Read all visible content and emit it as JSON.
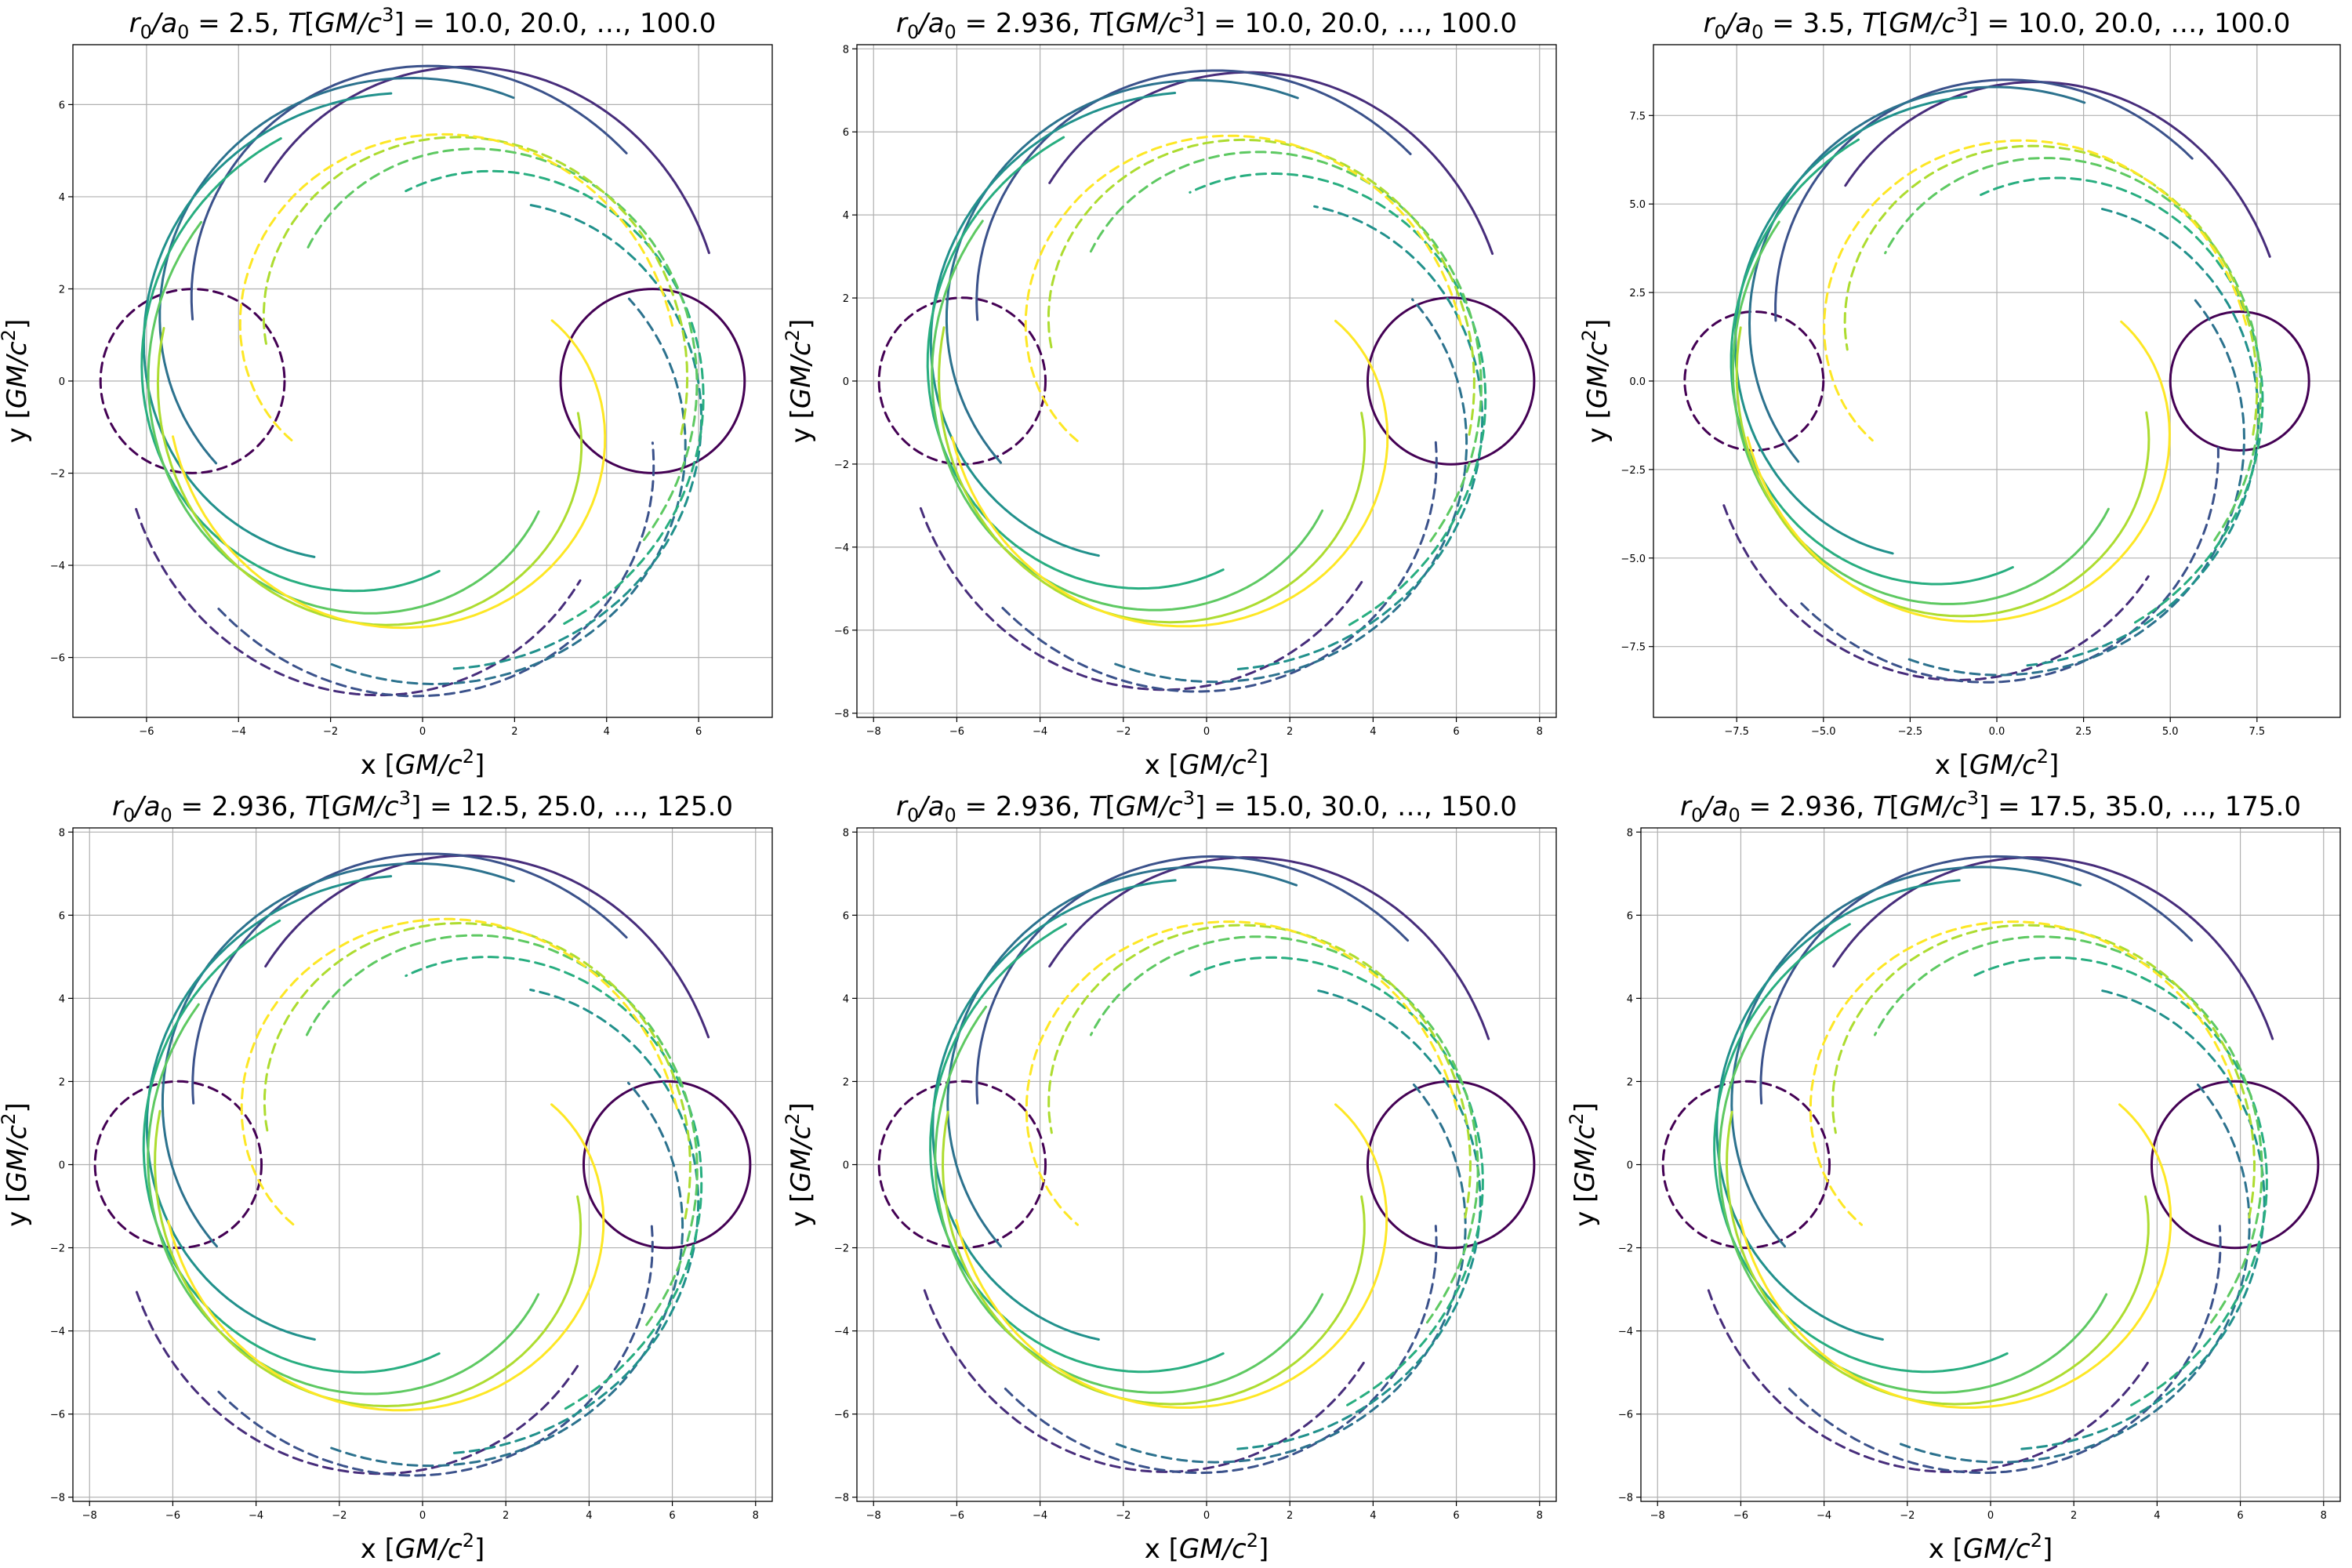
{
  "figure_title": "Six panels of trajectory curves",
  "chart_data": [
    {
      "type": "line",
      "title": "r_0/a_0 = 2.5,  T[GM/c^3] = 10.0, 20.0, …, 100.0",
      "title_parts": {
        "ratio": "2.5",
        "times": "10.0, 20.0,  …, 100.0"
      },
      "xlabel": "x [GM/c^2]",
      "ylabel": "y [GM/c^2]",
      "xlim": [
        -7.6,
        7.6
      ],
      "ylim": [
        -7.3,
        7.3
      ],
      "xticks": [
        -6,
        -4,
        -2,
        0,
        2,
        4,
        6
      ],
      "yticks": [
        -6,
        -4,
        -2,
        0,
        2,
        4,
        6
      ],
      "grid": true,
      "series_summary": {
        "circle_radius": 2.0,
        "circle_center_distance": 5.0,
        "spiral_max_radius": 6.9,
        "lobe_extent": 7.0
      }
    },
    {
      "type": "line",
      "title": "r_0/a_0 = 2.936,  T[GM/c^3] = 10.0, 20.0, …, 100.0",
      "title_parts": {
        "ratio": "2.936",
        "times": "10.0, 20.0,  …, 100.0"
      },
      "xlabel": "x [GM/c^2]",
      "ylabel": "y [GM/c^2]",
      "xlim": [
        -8.4,
        8.4
      ],
      "ylim": [
        -8.1,
        8.1
      ],
      "xticks": [
        -8,
        -6,
        -4,
        -2,
        0,
        2,
        4,
        6,
        8
      ],
      "yticks": [
        -8,
        -6,
        -4,
        -2,
        0,
        2,
        4,
        6,
        8
      ],
      "grid": true,
      "series_summary": {
        "circle_radius": 2.0,
        "circle_center_distance": 5.87,
        "spiral_max_radius": 7.6,
        "lobe_extent": 7.7
      }
    },
    {
      "type": "line",
      "title": "r_0/a_0 = 3.5,  T[GM/c^3] = 10.0, 20.0, …, 100.0",
      "title_parts": {
        "ratio": "3.5",
        "times": "10.0, 20.0,  …, 100.0"
      },
      "xlabel": "x [GM/c^2]",
      "ylabel": "y [GM/c^2]",
      "xlim": [
        -9.9,
        9.9
      ],
      "ylim": [
        -9.5,
        9.5
      ],
      "xticks": [
        -7.5,
        -5.0,
        -2.5,
        0.0,
        2.5,
        5.0,
        7.5
      ],
      "yticks": [
        -7.5,
        -5.0,
        -2.5,
        0.0,
        2.5,
        5.0,
        7.5
      ],
      "grid": true,
      "series_summary": {
        "circle_radius": 2.0,
        "circle_center_distance": 7.0,
        "spiral_max_radius": 8.8,
        "lobe_extent": 8.8
      }
    },
    {
      "type": "line",
      "title": "r_0/a_0 = 2.936,  T[GM/c^3] = 12.5, 25.0, …, 125.0",
      "title_parts": {
        "ratio": "2.936",
        "times": "12.5, 25.0,  …, 125.0"
      },
      "xlabel": "x [GM/c^2]",
      "ylabel": "y [GM/c^2]",
      "xlim": [
        -8.4,
        8.4
      ],
      "ylim": [
        -8.1,
        8.1
      ],
      "xticks": [
        -8,
        -6,
        -4,
        -2,
        0,
        2,
        4,
        6,
        8
      ],
      "yticks": [
        -8,
        -6,
        -4,
        -2,
        0,
        2,
        4,
        6,
        8
      ],
      "grid": true,
      "series_summary": {
        "circle_radius": 2.0,
        "circle_center_distance": 5.87,
        "spiral_max_radius": 7.6,
        "lobe_extent": 7.7
      }
    },
    {
      "type": "line",
      "title": "r_0/a_0 = 2.936,  T[GM/c^3] = 15.0, 30.0, …, 150.0",
      "title_parts": {
        "ratio": "2.936",
        "times": "15.0, 30.0,  …, 150.0"
      },
      "xlabel": "x [GM/c^2]",
      "ylabel": "y [GM/c^2]",
      "xlim": [
        -8.4,
        8.4
      ],
      "ylim": [
        -8.1,
        8.1
      ],
      "xticks": [
        -8,
        -6,
        -4,
        -2,
        0,
        2,
        4,
        6,
        8
      ],
      "yticks": [
        -8,
        -6,
        -4,
        -2,
        0,
        2,
        4,
        6,
        8
      ],
      "grid": true,
      "series_summary": {
        "circle_radius": 2.0,
        "circle_center_distance": 5.87,
        "spiral_max_radius": 7.6,
        "lobe_extent": 7.6
      }
    },
    {
      "type": "line",
      "title": "r_0/a_0 = 2.936,  T[GM/c^3] = 17.5, 35.0, …, 175.0",
      "title_parts": {
        "ratio": "2.936",
        "times": "17.5, 35.0,  …, 175.0"
      },
      "xlabel": "x [GM/c^2]",
      "ylabel": "y [GM/c^2]",
      "xlim": [
        -8.4,
        8.4
      ],
      "ylim": [
        -8.1,
        8.1
      ],
      "xticks": [
        -8,
        -6,
        -4,
        -2,
        0,
        2,
        4,
        6,
        8
      ],
      "yticks": [
        -8,
        -6,
        -4,
        -2,
        0,
        2,
        4,
        6,
        8
      ],
      "grid": true,
      "series_summary": {
        "circle_radius": 2.0,
        "circle_center_distance": 5.87,
        "spiral_max_radius": 7.6,
        "lobe_extent": 7.6
      }
    }
  ],
  "colors": {
    "series": [
      "#440154",
      "#472d7b",
      "#3b528b",
      "#2c728e",
      "#21918c",
      "#28ae80",
      "#5ec962",
      "#addc30",
      "#fde725"
    ],
    "grid": "#b0b0b0",
    "axis": "#000000"
  }
}
